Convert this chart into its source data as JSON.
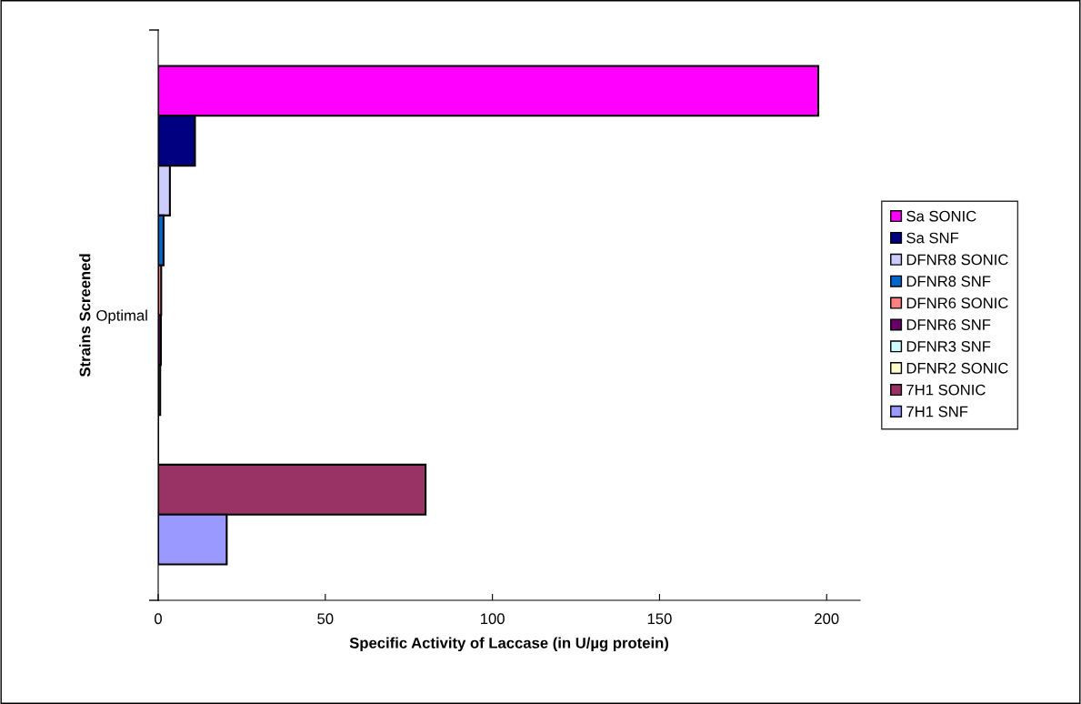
{
  "chart_data": {
    "type": "bar",
    "orientation": "horizontal",
    "xlabel": "Specific Activity of Laccase (in U/µg protein)",
    "ylabel": "Strains Screened",
    "categories": [
      "Optimal"
    ],
    "series": [
      {
        "name": "Sa SONIC",
        "color": "#ff00ff",
        "values": [
          197.5
        ]
      },
      {
        "name": "Sa SNF",
        "color": "#000080",
        "values": [
          11
        ]
      },
      {
        "name": "DFNR8 SONIC",
        "color": "#ccccff",
        "values": [
          3.5
        ]
      },
      {
        "name": "DFNR8 SNF",
        "color": "#0066cc",
        "values": [
          1.6
        ]
      },
      {
        "name": "DFNR6 SONIC",
        "color": "#ff8080",
        "values": [
          0.9
        ]
      },
      {
        "name": "DFNR6 SNF",
        "color": "#660066",
        "values": [
          0.8
        ]
      },
      {
        "name": "DFNR3 SNF",
        "color": "#ccffff",
        "values": [
          0.6
        ]
      },
      {
        "name": "DFNR2 SONIC",
        "color": "#ffffcc",
        "values": [
          null
        ]
      },
      {
        "name": "7H1 SONIC",
        "color": "#993366",
        "values": [
          80
        ]
      },
      {
        "name": "7H1 SNF",
        "color": "#9999ff",
        "values": [
          20.5
        ]
      }
    ],
    "xlim": [
      0,
      210
    ],
    "xticks": [
      0,
      50,
      100,
      150,
      200
    ],
    "grid": false,
    "legend": "right"
  }
}
